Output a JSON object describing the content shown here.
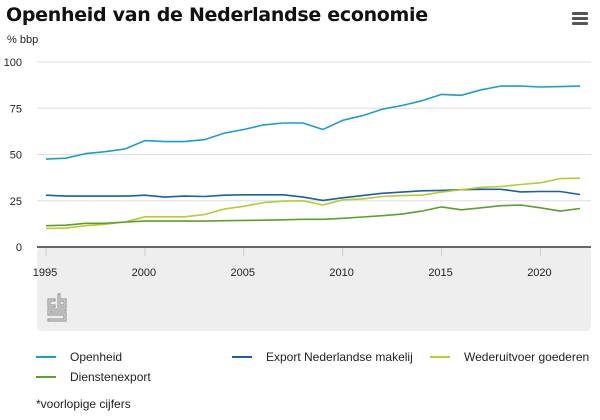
{
  "header": {
    "title": "Openheid van de Nederlandse economie",
    "unit_label": "% bbp",
    "menu_icon": "hamburger-menu-icon"
  },
  "footnote": "*voorlopige cijfers",
  "logo": "cbs-logo-icon",
  "chart_data": {
    "type": "line",
    "title": "Openheid van de Nederlandse economie",
    "xlabel": "",
    "ylabel": "% bbp",
    "ylim": [
      0,
      100
    ],
    "yticks": [
      0,
      25,
      50,
      75,
      100
    ],
    "xlim": [
      1995,
      2022
    ],
    "xticks": [
      1995,
      2000,
      2005,
      2010,
      2015,
      2020
    ],
    "grid": true,
    "legend_position": "bottom",
    "x": [
      1995,
      1996,
      1997,
      1998,
      1999,
      2000,
      2001,
      2002,
      2003,
      2004,
      2005,
      2006,
      2007,
      2008,
      2009,
      2010,
      2011,
      2012,
      2013,
      2014,
      2015,
      2016,
      2017,
      2018,
      2019,
      2020,
      2021,
      2022
    ],
    "series": [
      {
        "name": "Openheid",
        "color": "#1aa0c8",
        "values": [
          47.5,
          48,
          50.5,
          51.5,
          53,
          57.5,
          57,
          57,
          58,
          61.5,
          63.5,
          66,
          67,
          67,
          63.5,
          68.5,
          71,
          74.5,
          76.5,
          79,
          82.5,
          82,
          85,
          87,
          87,
          86.5,
          86.7,
          87
        ]
      },
      {
        "name": "Export Nederlandse makelij",
        "color": "#1a5fa8",
        "values": [
          28,
          27.5,
          27.5,
          27.5,
          27.5,
          28,
          27,
          27.5,
          27.3,
          28,
          28.2,
          28.2,
          28.2,
          27,
          25.2,
          26.6,
          27.8,
          29,
          29.7,
          30.4,
          30.6,
          31,
          31.2,
          31.2,
          29.8,
          30,
          30,
          28.4
        ]
      },
      {
        "name": "Wederuitvoer goederen",
        "color": "#b8cc2a",
        "values": [
          10,
          10.2,
          11.5,
          12.3,
          13.5,
          16.3,
          16.3,
          16.3,
          17.5,
          20.5,
          22,
          24,
          24.8,
          25,
          22.7,
          25.5,
          26,
          27.3,
          27.8,
          28,
          29.7,
          31,
          32.2,
          32.7,
          33.8,
          34.7,
          37,
          37.2
        ]
      },
      {
        "name": "Dienstenexport",
        "color": "#5aa02c",
        "values": [
          11.5,
          11.8,
          12.8,
          12.8,
          13.5,
          14,
          14,
          14,
          14,
          14.2,
          14.4,
          14.5,
          14.7,
          15,
          15,
          15.5,
          16.2,
          16.9,
          17.8,
          19.4,
          21.7,
          20.1,
          21.2,
          22.3,
          22.7,
          21.2,
          19.4,
          20.8
        ]
      }
    ]
  }
}
